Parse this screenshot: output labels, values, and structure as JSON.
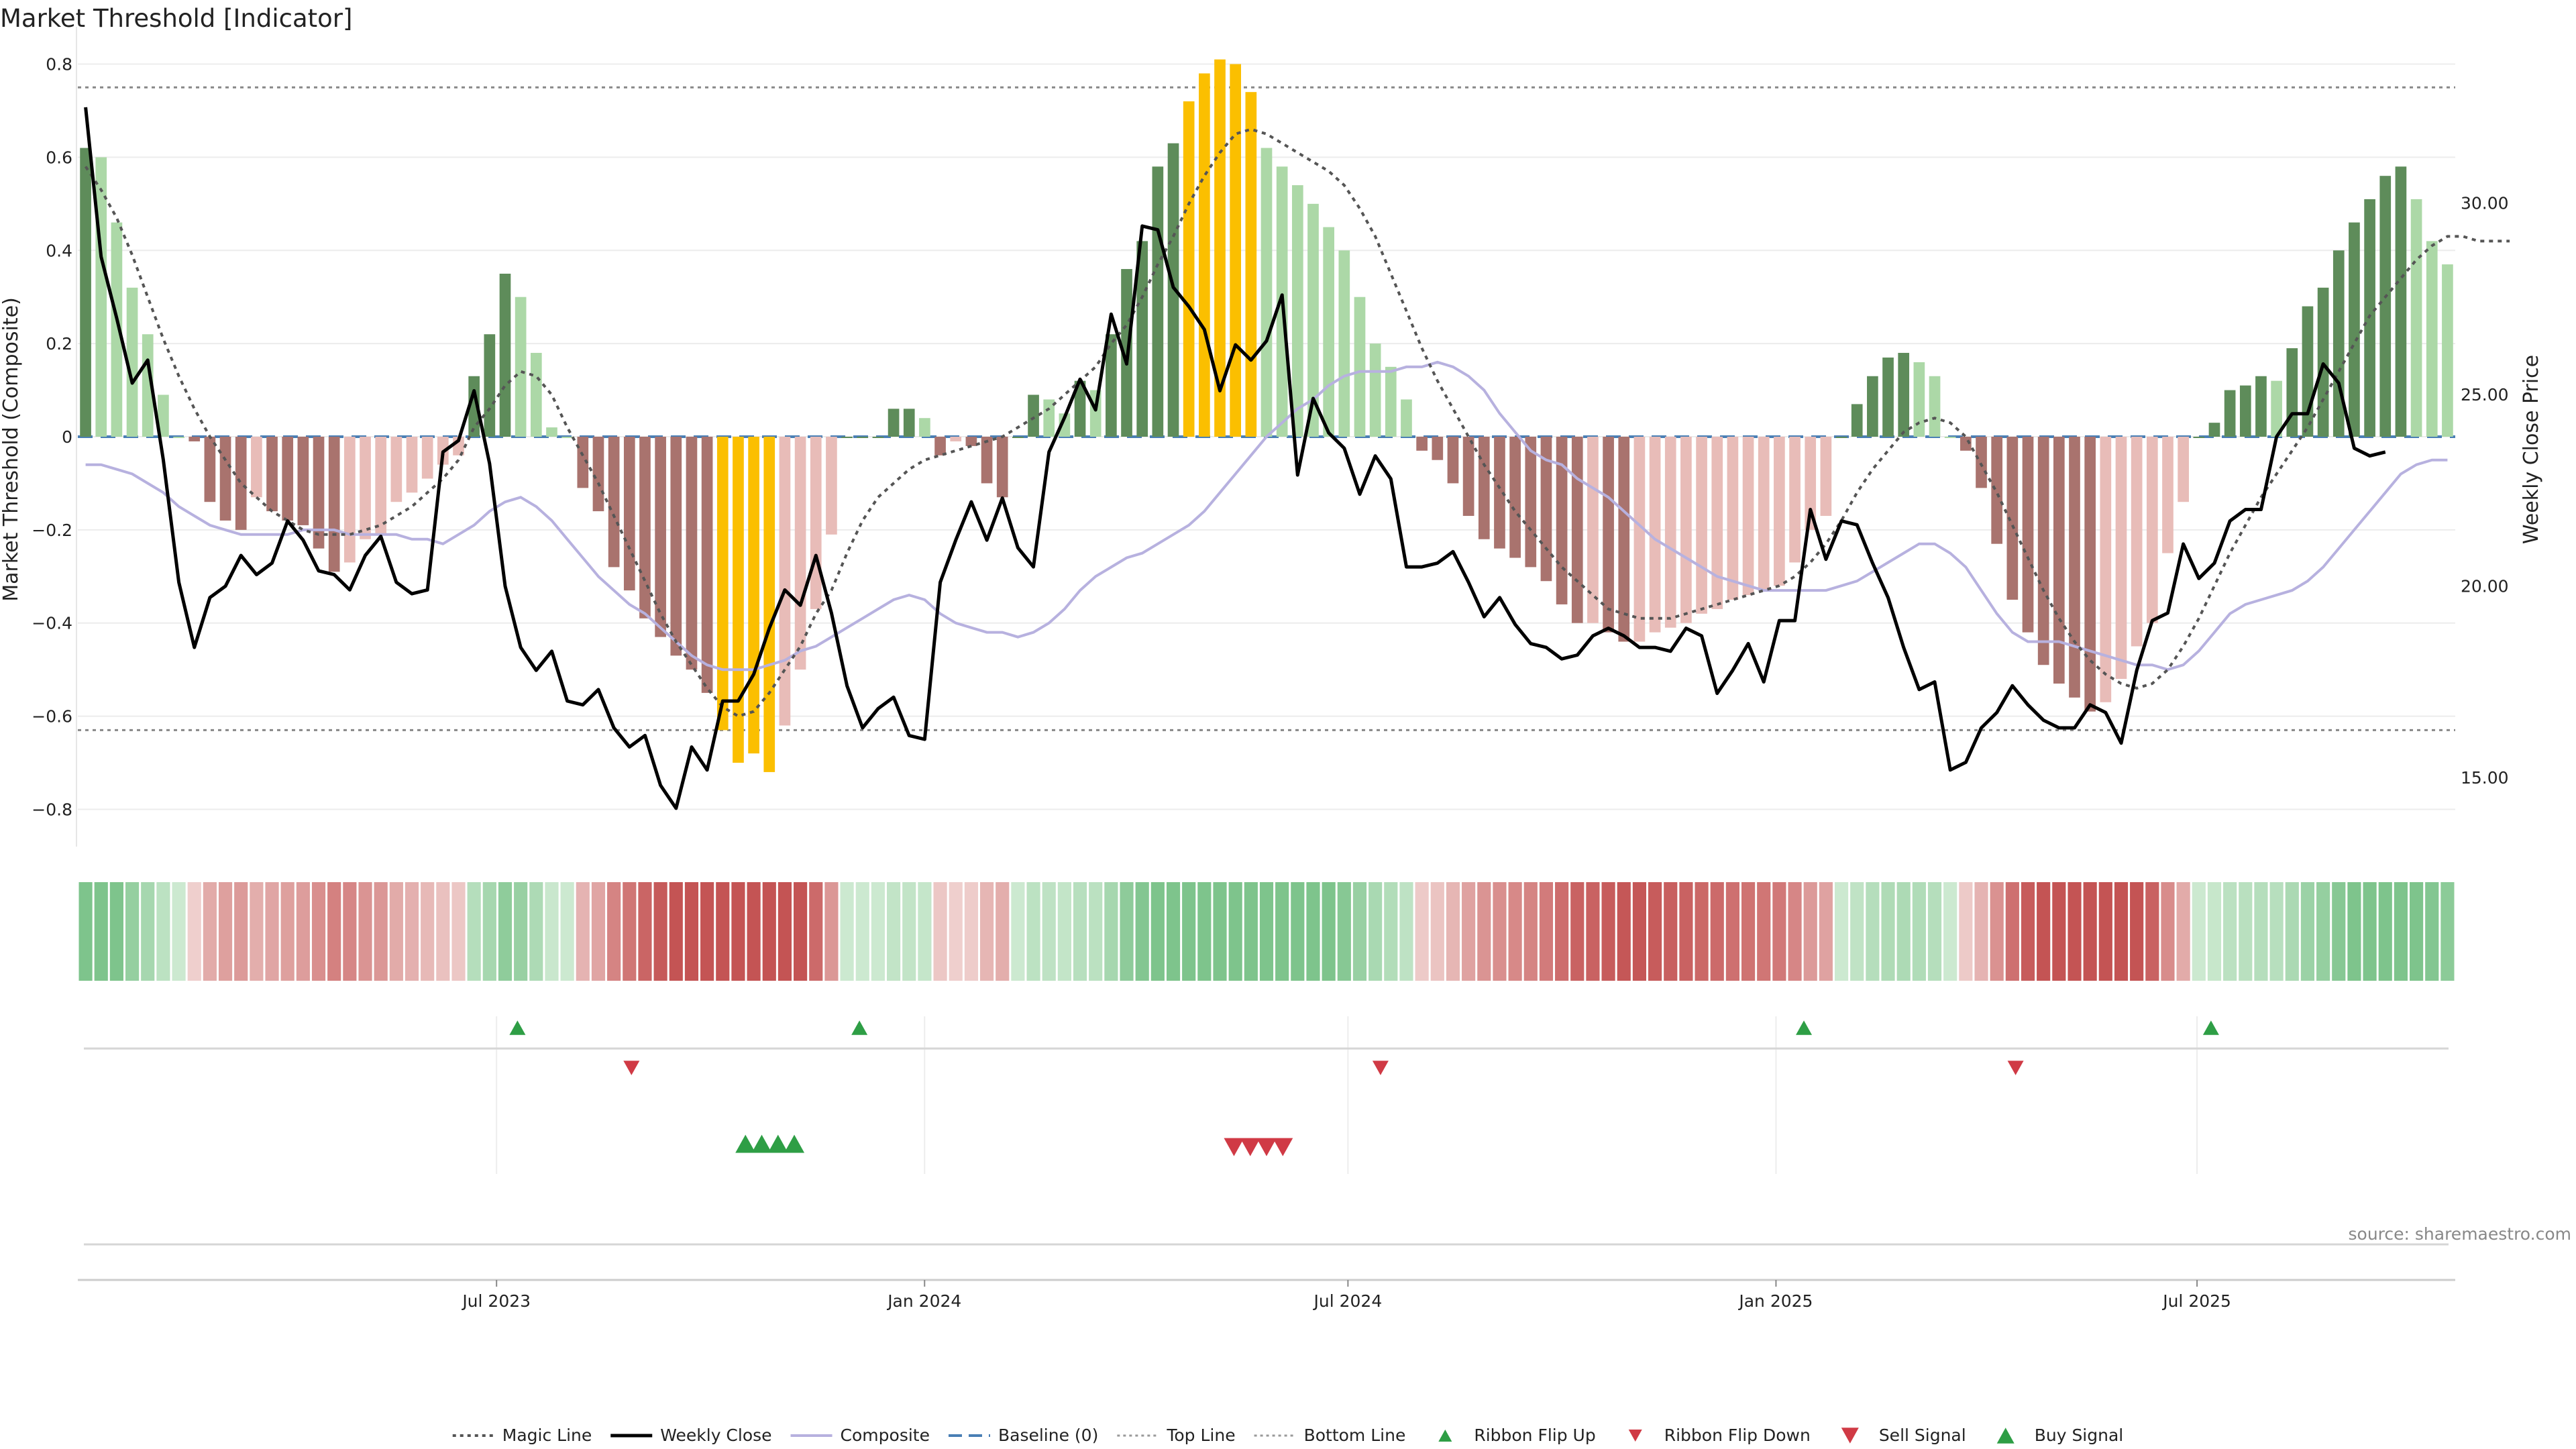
{
  "chart_data": {
    "type": "bar",
    "title": "Market Threshold [Indicator]",
    "ylabel": "Market Threshold (Composite)",
    "y2label": "Weekly Close Price",
    "ylim": [
      -0.88,
      0.88
    ],
    "y2lim": [
      13.2,
      34.6
    ],
    "yticks": [
      0.8,
      0.6,
      0.4,
      0.2,
      0,
      -0.2,
      -0.4,
      -0.6,
      -0.8
    ],
    "ytick_labels": [
      "0.8",
      "0.6",
      "0.4",
      "0.2",
      "0",
      "−0.2",
      "−0.4",
      "−0.6",
      "−0.8"
    ],
    "y2ticks": [
      30,
      25,
      20,
      15
    ],
    "y2tick_labels": [
      "30.00",
      "25.00",
      "20.00",
      "15.00"
    ],
    "x_start": "2023-01-02",
    "x_end": "2025-10-20",
    "xticks": [
      "2023-07-01",
      "2024-01-01",
      "2024-07-01",
      "2025-01-01",
      "2025-07-01"
    ],
    "xtick_labels": [
      "Jul 2023",
      "Jan 2024",
      "Jul 2024",
      "Jan 2025",
      "Jul 2025"
    ],
    "top_line": 0.75,
    "bottom_line": -0.63,
    "baseline": 0,
    "grid": true,
    "legend_position": "bottom-center",
    "source": "source: sharemaestro.com",
    "composite_bars": [
      0.62,
      0.6,
      0.46,
      0.32,
      0.22,
      0.09,
      0,
      -0.01,
      -0.14,
      -0.18,
      -0.2,
      -0.13,
      -0.16,
      -0.18,
      -0.19,
      -0.24,
      -0.29,
      -0.27,
      -0.22,
      -0.21,
      -0.14,
      -0.12,
      -0.09,
      -0.06,
      -0.04,
      0.13,
      0.22,
      0.35,
      0.3,
      0.18,
      0.02,
      0,
      -0.11,
      -0.16,
      -0.28,
      -0.33,
      -0.39,
      -0.43,
      -0.47,
      -0.5,
      -0.55,
      -0.63,
      -0.7,
      -0.68,
      -0.72,
      -0.62,
      -0.5,
      -0.37,
      -0.21,
      0,
      0,
      0,
      0.06,
      0.06,
      0.04,
      -0.04,
      -0.01,
      -0.02,
      -0.1,
      -0.13,
      0,
      0.09,
      0.08,
      0.05,
      0.12,
      0.1,
      0.22,
      0.36,
      0.42,
      0.58,
      0.63,
      0.72,
      0.78,
      0.81,
      0.8,
      0.74,
      0.62,
      0.58,
      0.54,
      0.5,
      0.45,
      0.4,
      0.3,
      0.2,
      0.15,
      0.08,
      -0.03,
      -0.05,
      -0.1,
      -0.17,
      -0.22,
      -0.24,
      -0.26,
      -0.28,
      -0.31,
      -0.36,
      -0.4,
      -0.4,
      -0.42,
      -0.44,
      -0.44,
      -0.42,
      -0.41,
      -0.4,
      -0.38,
      -0.37,
      -0.35,
      -0.34,
      -0.33,
      -0.32,
      -0.27,
      -0.2,
      -0.17,
      0,
      0.07,
      0.13,
      0.17,
      0.18,
      0.16,
      0.13,
      0,
      -0.03,
      -0.11,
      -0.23,
      -0.35,
      -0.42,
      -0.49,
      -0.53,
      -0.56,
      -0.59,
      -0.57,
      -0.52,
      -0.45,
      -0.4,
      -0.25,
      -0.14,
      0,
      0.03,
      0.1,
      0.11,
      0.13,
      0.12,
      0.19,
      0.28,
      0.32,
      0.4,
      0.46,
      0.51,
      0.56,
      0.58,
      0.51,
      0.42,
      0.37
    ],
    "weekly_close": [
      32.5,
      28.6,
      27,
      25.3,
      25.9,
      23.3,
      20.1,
      18.4,
      19.7,
      20,
      20.8,
      20.3,
      20.6,
      21.7,
      21.2,
      20.4,
      20.3,
      19.9,
      20.8,
      21.3,
      20.1,
      19.8,
      19.9,
      23.5,
      23.8,
      25.1,
      23.2,
      20,
      18.4,
      17.8,
      18.3,
      17,
      16.9,
      17.3,
      16.3,
      15.8,
      16.1,
      14.8,
      14.2,
      15.8,
      15.2,
      17,
      17,
      17.7,
      18.9,
      19.9,
      19.5,
      20.8,
      19.3,
      17.4,
      16.3,
      16.8,
      17.1,
      16.1,
      16,
      20.1,
      21.2,
      22.2,
      21.2,
      22.3,
      21,
      20.5,
      23.5,
      24.4,
      25.4,
      24.6,
      27.1,
      25.8,
      29.4,
      29.3,
      27.8,
      27.3,
      26.7,
      25.1,
      26.3,
      25.9,
      26.4,
      27.6,
      22.9,
      24.9,
      24,
      23.6,
      22.4,
      23.4,
      22.8,
      20.5,
      20.5,
      20.6,
      20.9,
      20.1,
      19.2,
      19.7,
      19,
      18.5,
      18.4,
      18.1,
      18.2,
      18.7,
      18.9,
      18.7,
      18.4,
      18.4,
      18.3,
      18.9,
      18.7,
      17.2,
      17.8,
      18.5,
      17.5,
      19.1,
      19.1,
      22,
      20.7,
      21.7,
      21.6,
      20.6,
      19.7,
      18.4,
      17.3,
      17.5,
      15.2,
      15.4,
      16.3,
      16.7,
      17.4,
      16.9,
      16.5,
      16.3,
      16.3,
      16.9,
      16.7,
      15.9,
      17.8,
      19.1,
      19.3,
      21.1,
      20.2,
      20.6,
      21.7,
      22,
      22,
      23.9,
      24.5,
      24.5,
      25.8,
      25.3,
      23.6,
      23.4,
      23.5
    ],
    "composite_line": [
      -0.06,
      -0.06,
      -0.07,
      -0.08,
      -0.1,
      -0.12,
      -0.15,
      -0.17,
      -0.19,
      -0.2,
      -0.21,
      -0.21,
      -0.21,
      -0.21,
      -0.2,
      -0.2,
      -0.2,
      -0.21,
      -0.21,
      -0.21,
      -0.21,
      -0.22,
      -0.22,
      -0.23,
      -0.21,
      -0.19,
      -0.16,
      -0.14,
      -0.13,
      -0.15,
      -0.18,
      -0.22,
      -0.26,
      -0.3,
      -0.33,
      -0.36,
      -0.38,
      -0.41,
      -0.44,
      -0.47,
      -0.49,
      -0.5,
      -0.5,
      -0.5,
      -0.49,
      -0.48,
      -0.46,
      -0.45,
      -0.43,
      -0.41,
      -0.39,
      -0.37,
      -0.35,
      -0.34,
      -0.35,
      -0.38,
      -0.4,
      -0.41,
      -0.42,
      -0.42,
      -0.43,
      -0.42,
      -0.4,
      -0.37,
      -0.33,
      -0.3,
      -0.28,
      -0.26,
      -0.25,
      -0.23,
      -0.21,
      -0.19,
      -0.16,
      -0.12,
      -0.08,
      -0.04,
      0,
      0.03,
      0.06,
      0.08,
      0.11,
      0.13,
      0.14,
      0.14,
      0.14,
      0.15,
      0.15,
      0.16,
      0.15,
      0.13,
      0.1,
      0.05,
      0.01,
      -0.03,
      -0.05,
      -0.06,
      -0.09,
      -0.11,
      -0.13,
      -0.16,
      -0.19,
      -0.22,
      -0.24,
      -0.26,
      -0.28,
      -0.3,
      -0.31,
      -0.32,
      -0.33,
      -0.33,
      -0.33,
      -0.33,
      -0.33,
      -0.32,
      -0.31,
      -0.29,
      -0.27,
      -0.25,
      -0.23,
      -0.23,
      -0.25,
      -0.28,
      -0.33,
      -0.38,
      -0.42,
      -0.44,
      -0.44,
      -0.44,
      -0.45,
      -0.46,
      -0.47,
      -0.48,
      -0.49,
      -0.49,
      -0.5,
      -0.49,
      -0.46,
      -0.42,
      -0.38,
      -0.36,
      -0.35,
      -0.34,
      -0.33,
      -0.31,
      -0.28,
      -0.24,
      -0.2,
      -0.16,
      -0.12,
      -0.08,
      -0.06,
      -0.05,
      -0.05
    ],
    "magic_line": [
      0.58,
      0.53,
      0.47,
      0.39,
      0.3,
      0.21,
      0.13,
      0.06,
      0,
      -0.05,
      -0.1,
      -0.13,
      -0.16,
      -0.18,
      -0.2,
      -0.21,
      -0.21,
      -0.21,
      -0.2,
      -0.19,
      -0.17,
      -0.15,
      -0.12,
      -0.09,
      -0.05,
      0.02,
      0.06,
      0.11,
      0.14,
      0.13,
      0.09,
      0.02,
      -0.04,
      -0.1,
      -0.17,
      -0.24,
      -0.31,
      -0.38,
      -0.44,
      -0.49,
      -0.54,
      -0.58,
      -0.6,
      -0.59,
      -0.55,
      -0.5,
      -0.45,
      -0.38,
      -0.33,
      -0.25,
      -0.18,
      -0.13,
      -0.1,
      -0.07,
      -0.05,
      -0.04,
      -0.03,
      -0.02,
      -0.01,
      0,
      0.02,
      0.04,
      0.06,
      0.09,
      0.12,
      0.15,
      0.2,
      0.24,
      0.3,
      0.37,
      0.43,
      0.5,
      0.56,
      0.61,
      0.65,
      0.66,
      0.65,
      0.63,
      0.61,
      0.59,
      0.57,
      0.54,
      0.49,
      0.43,
      0.35,
      0.27,
      0.19,
      0.12,
      0.06,
      0,
      -0.06,
      -0.11,
      -0.16,
      -0.2,
      -0.24,
      -0.28,
      -0.31,
      -0.34,
      -0.37,
      -0.38,
      -0.39,
      -0.39,
      -0.39,
      -0.38,
      -0.37,
      -0.36,
      -0.35,
      -0.34,
      -0.33,
      -0.32,
      -0.3,
      -0.27,
      -0.23,
      -0.18,
      -0.12,
      -0.07,
      -0.03,
      0.01,
      0.03,
      0.04,
      0.03,
      0,
      -0.06,
      -0.12,
      -0.19,
      -0.26,
      -0.33,
      -0.39,
      -0.44,
      -0.48,
      -0.51,
      -0.53,
      -0.54,
      -0.53,
      -0.5,
      -0.45,
      -0.39,
      -0.32,
      -0.25,
      -0.19,
      -0.13,
      -0.08,
      -0.03,
      0.02,
      0.08,
      0.14,
      0.2,
      0.26,
      0.3,
      0.34,
      0.38,
      0.41,
      0.43,
      0.43,
      0.42,
      0.42,
      0.42
    ],
    "ribbon_flip_up": [
      "2023-07-10",
      "2023-12-04",
      "2025-01-13",
      "2025-07-07"
    ],
    "ribbon_flip_down": [
      "2023-08-28",
      "2024-07-15",
      "2025-04-14"
    ],
    "buy_signals": [
      "2023-10-16",
      "2023-10-23",
      "2023-10-30",
      "2023-11-06"
    ],
    "sell_signals": [
      "2024-05-13",
      "2024-05-20",
      "2024-05-27",
      "2024-06-03"
    ],
    "legend": [
      {
        "label": "Magic Line",
        "kind": "dotted"
      },
      {
        "label": "Weekly Close",
        "kind": "solid"
      },
      {
        "label": "Composite",
        "kind": "lavender"
      },
      {
        "label": "Baseline (0)",
        "kind": "dashed"
      },
      {
        "label": "Top Line",
        "kind": "dotted-light"
      },
      {
        "label": "Bottom Line",
        "kind": "dotted-light"
      },
      {
        "label": "Ribbon Flip Up",
        "kind": "tri-up-small"
      },
      {
        "label": "Ribbon Flip Down",
        "kind": "tri-down-small"
      },
      {
        "label": "Sell Signal",
        "kind": "tri-down"
      },
      {
        "label": "Buy Signal",
        "kind": "tri-up"
      }
    ],
    "colors": {
      "pos_strong": "#5e8c5a",
      "pos_weak": "#acd8a7",
      "neg_strong": "#a9736e",
      "neg_weak": "#e8bcb8",
      "extreme": "#fbbf00",
      "weekly_close": "#000000",
      "composite": "#b7b1df",
      "magic": "#555555",
      "baseline": "#4a7fb5",
      "guides": "#888888",
      "buy": "#2e9e45",
      "sell": "#d03a45"
    }
  }
}
